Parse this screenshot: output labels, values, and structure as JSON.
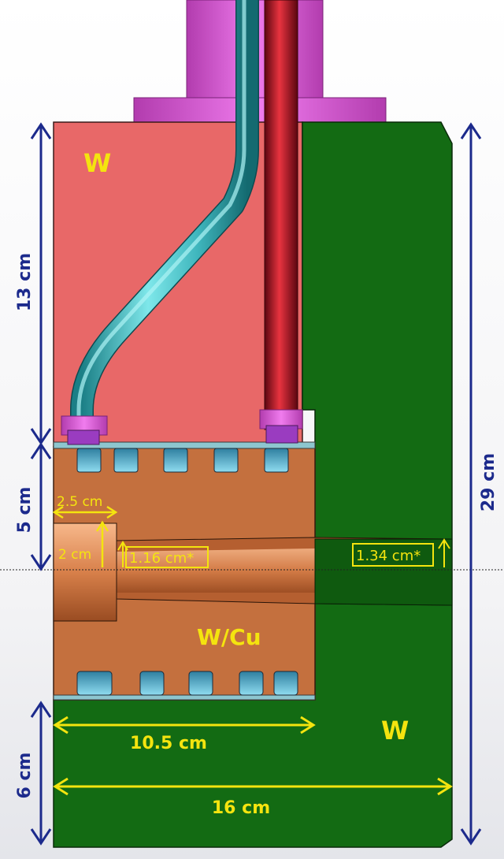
{
  "labels": {
    "w_top": "W",
    "w_bottom": "W",
    "wcu": "W/Cu"
  },
  "dimensions": {
    "d_13cm": "13 cm",
    "d_5cm": "5 cm",
    "d_6cm": "6 cm",
    "d_29cm": "29 cm",
    "d_2_5cm": "2.5 cm",
    "d_2cm": "2 cm",
    "d_1_16cm": "1.16 cm*",
    "d_1_34cm": "1.34 cm*",
    "d_10_5cm": "10.5 cm",
    "d_16cm": "16 cm"
  },
  "colors": {
    "tungsten_block": "#e86868",
    "wcu_block": "#c4703e",
    "right_block": "#136b13",
    "flange": "#e35fe0",
    "coolant_tube": "#4cc8cc",
    "red_tube": "#c0182a",
    "channel": "#5bbcd6",
    "dimension_yellow": "#f4e40f",
    "dimension_blue": "#1c2a8c"
  }
}
